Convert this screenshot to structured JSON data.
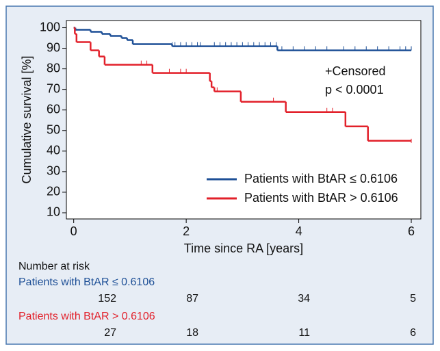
{
  "chart_data": {
    "type": "km",
    "ylabel": "Cumulative survival [%]",
    "xlabel": "Time since RA [years]",
    "xlim": [
      -0.13,
      6.17
    ],
    "ylim": [
      7,
      103.5
    ],
    "xticks": [
      0,
      2,
      4,
      6
    ],
    "yticks": [
      10,
      20,
      30,
      40,
      50,
      60,
      70,
      80,
      90,
      100
    ],
    "annotations": [
      "+Censored",
      "p < 0.0001"
    ],
    "series": [
      {
        "name": "Patients with BtAR ≤ 0.6106",
        "color": "#1d4f96",
        "x": [
          0,
          0.03,
          0.3,
          0.5,
          0.65,
          0.85,
          0.95,
          1.05,
          1.75,
          3.62,
          6
        ],
        "values": [
          100,
          99,
          98,
          97,
          96,
          95,
          94,
          92,
          91,
          89,
          89
        ],
        "censored_x": [
          1.75,
          1.8,
          1.9,
          2.0,
          2.1,
          2.2,
          2.25,
          2.5,
          2.6,
          2.7,
          2.8,
          2.9,
          3.0,
          3.1,
          3.2,
          3.3,
          3.4,
          3.5,
          3.6,
          3.7,
          3.9,
          4.1,
          4.3,
          4.5,
          4.8,
          5.0,
          5.2,
          5.4,
          5.6,
          5.8,
          5.9,
          6.0
        ],
        "censored_values": [
          91,
          91,
          91,
          91,
          91,
          91,
          91,
          91,
          91,
          91,
          91,
          91,
          91,
          91,
          91,
          91,
          91,
          91,
          91,
          89,
          89,
          89,
          89,
          89,
          89,
          89,
          89,
          89,
          89,
          89,
          89,
          89
        ]
      },
      {
        "name": "Patients with BtAR > 0.6106",
        "color": "#e2202a",
        "x": [
          0,
          0.02,
          0.05,
          0.3,
          0.45,
          0.55,
          1.4,
          2.42,
          2.45,
          2.5,
          2.97,
          3.77,
          4.83,
          5.23,
          6
        ],
        "values": [
          100,
          97,
          93,
          89,
          86,
          82,
          78,
          74,
          71,
          69,
          64,
          59,
          52,
          45,
          45
        ],
        "censored_x": [
          1.2,
          1.3,
          1.7,
          1.9,
          2.0,
          2.55,
          3.55,
          4.5,
          4.6,
          6.0
        ],
        "censored_values": [
          82,
          82,
          78,
          78,
          78,
          69,
          64,
          59,
          59,
          44
        ]
      }
    ]
  },
  "risk_table": {
    "title": "Number at risk",
    "rows": [
      {
        "label": "Patients with BtAR ≤ 0.6106",
        "counts": [
          152,
          87,
          34,
          5
        ]
      },
      {
        "label": "Patients with BtAR > 0.6106",
        "counts": [
          27,
          18,
          11,
          6
        ]
      }
    ]
  }
}
